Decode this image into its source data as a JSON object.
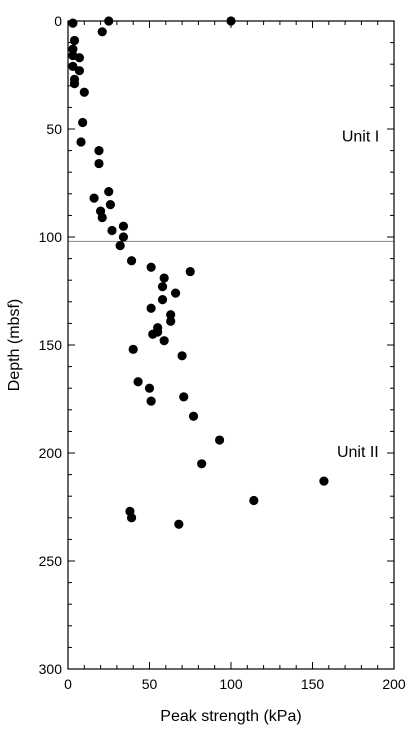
{
  "chart_data": {
    "type": "scatter",
    "title": "",
    "xlabel": "Peak strength (kPa)",
    "ylabel": "Depth (mbsf)",
    "xlim": [
      0,
      200
    ],
    "ylim": [
      0,
      300
    ],
    "y_inverted": true,
    "x_ticks": [
      "0",
      "50",
      "100",
      "150",
      "200"
    ],
    "y_ticks": [
      "0",
      "50",
      "100",
      "150",
      "200",
      "250",
      "300"
    ],
    "grid": false,
    "legend": "none",
    "boundary_line_depth": 102,
    "annotations": [
      {
        "text": "Unit I",
        "x": 168,
        "depth": 53
      },
      {
        "text": "Unit II",
        "x": 165,
        "depth": 199
      }
    ],
    "points": [
      {
        "x": 3,
        "y": 1
      },
      {
        "x": 25,
        "y": 0
      },
      {
        "x": 100,
        "y": 0
      },
      {
        "x": 21,
        "y": 5
      },
      {
        "x": 4,
        "y": 9
      },
      {
        "x": 3,
        "y": 13
      },
      {
        "x": 3,
        "y": 16
      },
      {
        "x": 7,
        "y": 17
      },
      {
        "x": 3,
        "y": 21
      },
      {
        "x": 7,
        "y": 23
      },
      {
        "x": 4,
        "y": 27
      },
      {
        "x": 4,
        "y": 29
      },
      {
        "x": 10,
        "y": 33
      },
      {
        "x": 9,
        "y": 47
      },
      {
        "x": 8,
        "y": 56
      },
      {
        "x": 19,
        "y": 60
      },
      {
        "x": 19,
        "y": 66
      },
      {
        "x": 25,
        "y": 79
      },
      {
        "x": 16,
        "y": 82
      },
      {
        "x": 26,
        "y": 85
      },
      {
        "x": 20,
        "y": 88
      },
      {
        "x": 21,
        "y": 91
      },
      {
        "x": 34,
        "y": 95
      },
      {
        "x": 27,
        "y": 97
      },
      {
        "x": 34,
        "y": 100
      },
      {
        "x": 32,
        "y": 104
      },
      {
        "x": 39,
        "y": 111
      },
      {
        "x": 51,
        "y": 114
      },
      {
        "x": 75,
        "y": 116
      },
      {
        "x": 59,
        "y": 119
      },
      {
        "x": 58,
        "y": 123
      },
      {
        "x": 66,
        "y": 126
      },
      {
        "x": 58,
        "y": 129
      },
      {
        "x": 51,
        "y": 133
      },
      {
        "x": 63,
        "y": 136
      },
      {
        "x": 63,
        "y": 139
      },
      {
        "x": 55,
        "y": 142
      },
      {
        "x": 55,
        "y": 144
      },
      {
        "x": 52,
        "y": 145
      },
      {
        "x": 59,
        "y": 148
      },
      {
        "x": 40,
        "y": 152
      },
      {
        "x": 70,
        "y": 155
      },
      {
        "x": 43,
        "y": 167
      },
      {
        "x": 50,
        "y": 170
      },
      {
        "x": 71,
        "y": 174
      },
      {
        "x": 51,
        "y": 176
      },
      {
        "x": 77,
        "y": 183
      },
      {
        "x": 93,
        "y": 194
      },
      {
        "x": 82,
        "y": 205
      },
      {
        "x": 157,
        "y": 213
      },
      {
        "x": 114,
        "y": 222
      },
      {
        "x": 38,
        "y": 227
      },
      {
        "x": 39,
        "y": 230
      },
      {
        "x": 68,
        "y": 233
      }
    ]
  }
}
